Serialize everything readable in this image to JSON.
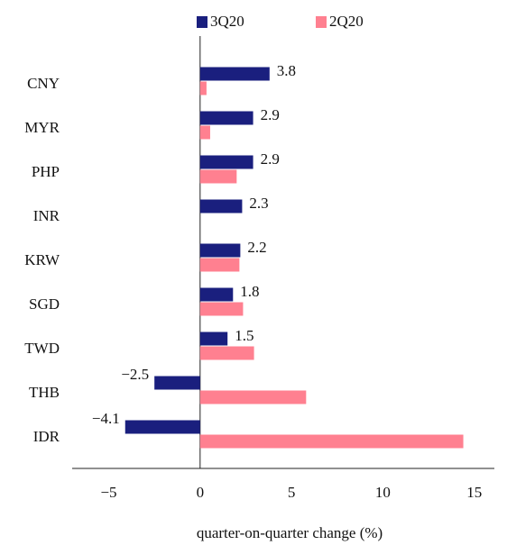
{
  "chart_data": {
    "type": "hbar",
    "xlabel": "quarter-on-quarter change (%)",
    "categories": [
      "CNY",
      "MYR",
      "PHP",
      "INR",
      "KRW",
      "SGD",
      "TWD",
      "THB",
      "IDR"
    ],
    "series": [
      {
        "name": "3Q20",
        "color": "#1a1f7e",
        "values": [
          3.8,
          2.9,
          2.9,
          2.3,
          2.2,
          1.8,
          1.5,
          -2.5,
          -4.1
        ],
        "value_labels": [
          "3.8",
          "2.9",
          "2.9",
          "2.3",
          "2.2",
          "1.8",
          "1.5",
          "−2.5",
          "−4.1"
        ]
      },
      {
        "name": "2Q20",
        "color": "#ff8090",
        "values": [
          0.35,
          0.55,
          2.0,
          0,
          2.15,
          2.35,
          2.95,
          5.8,
          14.4
        ]
      }
    ],
    "xlim": [
      -7,
      16.1
    ],
    "xticks": [
      {
        "value": -5,
        "label": "−5"
      },
      0,
      5,
      10,
      15
    ],
    "legend": "top"
  }
}
